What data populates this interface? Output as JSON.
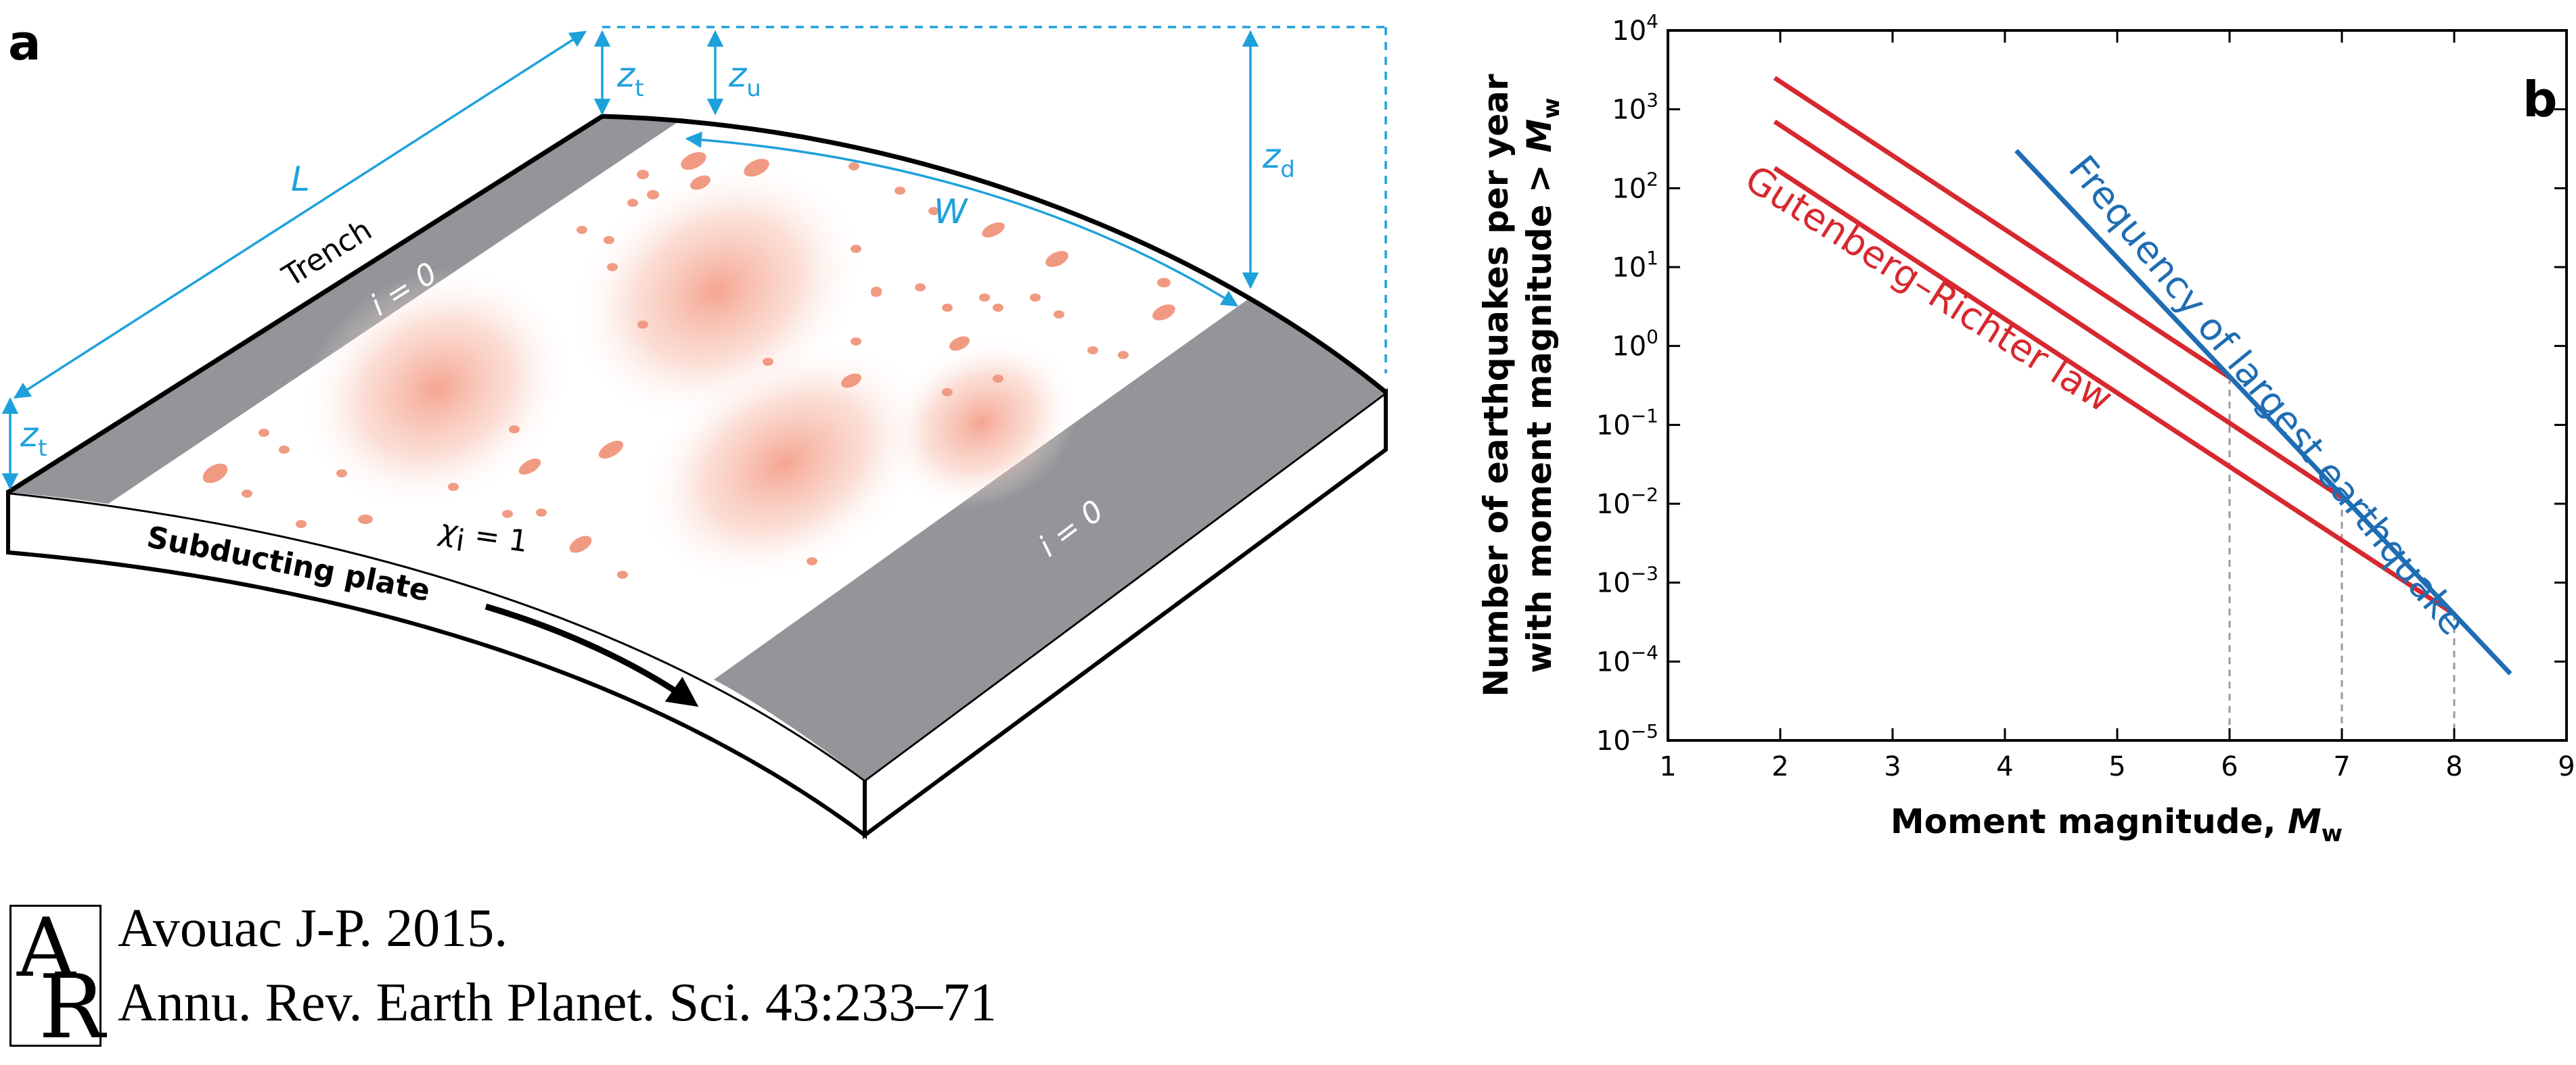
{
  "panel_a": {
    "letter": "a",
    "dimension_labels": {
      "L": "L",
      "W": "W",
      "z": "z",
      "t": "t",
      "u": "u",
      "d": "d"
    },
    "text_labels": {
      "trench": "Trench",
      "i_zero": "i = 0",
      "chi_symbol": "χ",
      "chi_sub": "i",
      "chi_rest": " = 1",
      "subducting_plate": "Subducting plate"
    },
    "colors": {
      "dimension": "#1ea1db",
      "locked_zone": "#939598",
      "asperity": "#f4a08a",
      "outline": "#000000"
    }
  },
  "panel_b": {
    "letter": "b",
    "xlabel_main": "Moment magnitude, ",
    "xlabel_sym": "M",
    "xlabel_sub": "w",
    "ylabel_line1": "Number of earthquakes per year",
    "ylabel_line2_main": "with moment magnitude > ",
    "ylabel_line2_sym": "M",
    "ylabel_line2_sub": "w",
    "xtick_labels": [
      "1",
      "2",
      "3",
      "4",
      "5",
      "6",
      "7",
      "8",
      "9"
    ],
    "ytick_base": "10",
    "ytick_exponents": [
      "−5",
      "−4",
      "−3",
      "−2",
      "−1",
      "0",
      "1",
      "2",
      "3",
      "4"
    ],
    "gr_label": "Gutenberg–Richter law",
    "largest_label": "Frequency of largest earthquake",
    "colors": {
      "gutenberg_richter": "#d7282f",
      "largest": "#1f6db3",
      "guide": "#9a9a9a"
    }
  },
  "chart_data": {
    "type": "line",
    "xlabel": "Moment magnitude, Mw",
    "ylabel": "Number of earthquakes per year with moment magnitude > Mw",
    "xlim": [
      1,
      9
    ],
    "ylim": [
      1e-05,
      10000.0
    ],
    "y_scale": "log",
    "grid": false,
    "series": [
      {
        "name": "Gutenberg–Richter law",
        "x": [
          1.95,
          6.0
        ],
        "y": [
          2500,
          0.4
        ]
      },
      {
        "name": "Gutenberg–Richter law",
        "x": [
          1.95,
          7.0
        ],
        "y": [
          700,
          0.012
        ]
      },
      {
        "name": "Gutenberg–Richter law",
        "x": [
          1.95,
          8.0
        ],
        "y": [
          180,
          0.0004
        ]
      },
      {
        "name": "Frequency of largest earthquake",
        "x": [
          4.1,
          8.5
        ],
        "y": [
          300,
          7e-05
        ]
      }
    ],
    "guide_lines_x": [
      6,
      7,
      8
    ],
    "panel_a": {
      "trench": "Trench",
      "plate": "Subducting plate"
    },
    "credit": {
      "line1": "Avouac J-P. 2015.",
      "line2": "Annu. Rev. Earth Planet. Sci. 43:233–71",
      "logo_a": "A",
      "logo_r": "R"
    }
  }
}
